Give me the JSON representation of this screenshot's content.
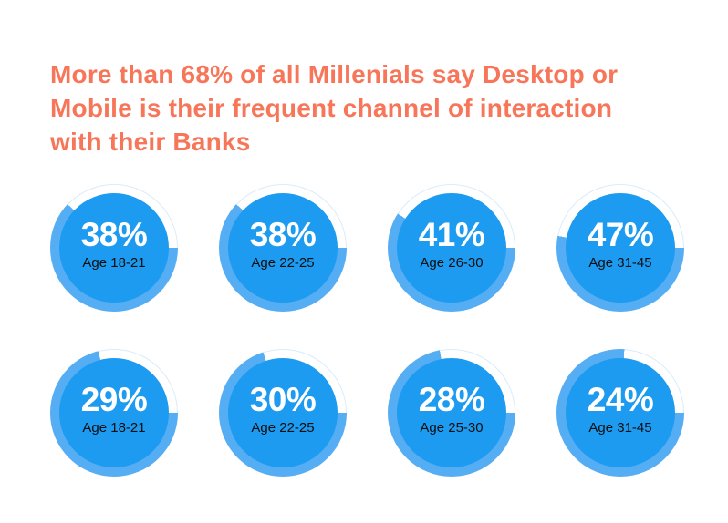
{
  "page": {
    "background": "#ffffff"
  },
  "title": {
    "text": "More than 68% of all Millenials say Desktop or Mobile is their frequent channel of interaction with their Banks",
    "lines": [
      "More than 68% of all Millenials say Desktop or",
      "Mobile is their frequent channel of interaction",
      "with their Banks"
    ]
  },
  "colors": {
    "title": "#f7765a",
    "disc": "#1d9bf0",
    "ring": "#55adf4",
    "ring_outline": "#d9ecfb",
    "percent_text": "#ffffff",
    "age_text": "#0d0e10",
    "background": "#ffffff"
  },
  "chart_data": {
    "type": "pie",
    "variant": "donut-gauge-grid",
    "title": "More than 68% of all Millenials say Desktop or Mobile is their frequent channel of interaction with their Banks",
    "unit": "%",
    "legend": "none",
    "layout": "2 rows x 4 columns of donut gauges; outer ring filled arc = 100 - value, white gap = value, gap ending at 3 o'clock",
    "rows": [
      {
        "name": "row-1",
        "gauges": [
          {
            "value": 38,
            "label": "38%",
            "age_group": "Age 18-21"
          },
          {
            "value": 38,
            "label": "38%",
            "age_group": "Age 22-25"
          },
          {
            "value": 41,
            "label": "41%",
            "age_group": "Age 26-30"
          },
          {
            "value": 47,
            "label": "47%",
            "age_group": "Age 31-45"
          }
        ]
      },
      {
        "name": "row-2",
        "gauges": [
          {
            "value": 29,
            "label": "29%",
            "age_group": "Age 18-21"
          },
          {
            "value": 30,
            "label": "30%",
            "age_group": "Age 22-25"
          },
          {
            "value": 28,
            "label": "28%",
            "age_group": "Age 25-30"
          },
          {
            "value": 24,
            "label": "24%",
            "age_group": "Age 31-45"
          }
        ]
      }
    ]
  }
}
